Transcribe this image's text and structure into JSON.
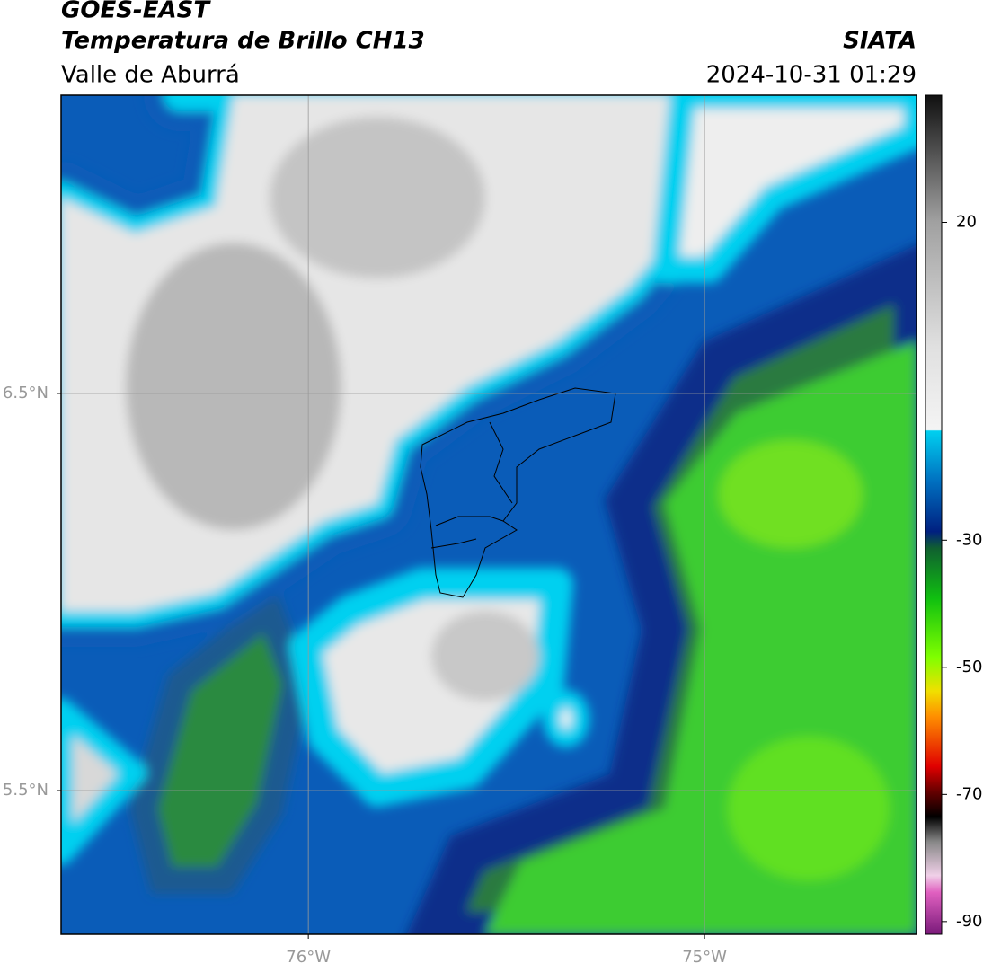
{
  "chart_data": {
    "type": "map",
    "title": "GOES-EAST",
    "subtitle": "Temperatura de Brillo CH13",
    "region": "Valle de Aburrá",
    "source": "SIATA",
    "timestamp": "2024-10-31 01:29",
    "xlim": [
      -76.624,
      -74.465
    ],
    "ylim": [
      5.138,
      7.251
    ],
    "xticks": [
      {
        "value": -76,
        "label": "76°W"
      },
      {
        "value": -75,
        "label": "75°W"
      }
    ],
    "yticks": [
      {
        "value": 6.5,
        "label": "6.5°N"
      },
      {
        "value": 5.5,
        "label": "5.5°N"
      }
    ],
    "grid": true,
    "colorbar_lim": [
      -92,
      40
    ],
    "colorbar_ticks": [
      20,
      -30,
      -50,
      -70,
      -90
    ]
  }
}
